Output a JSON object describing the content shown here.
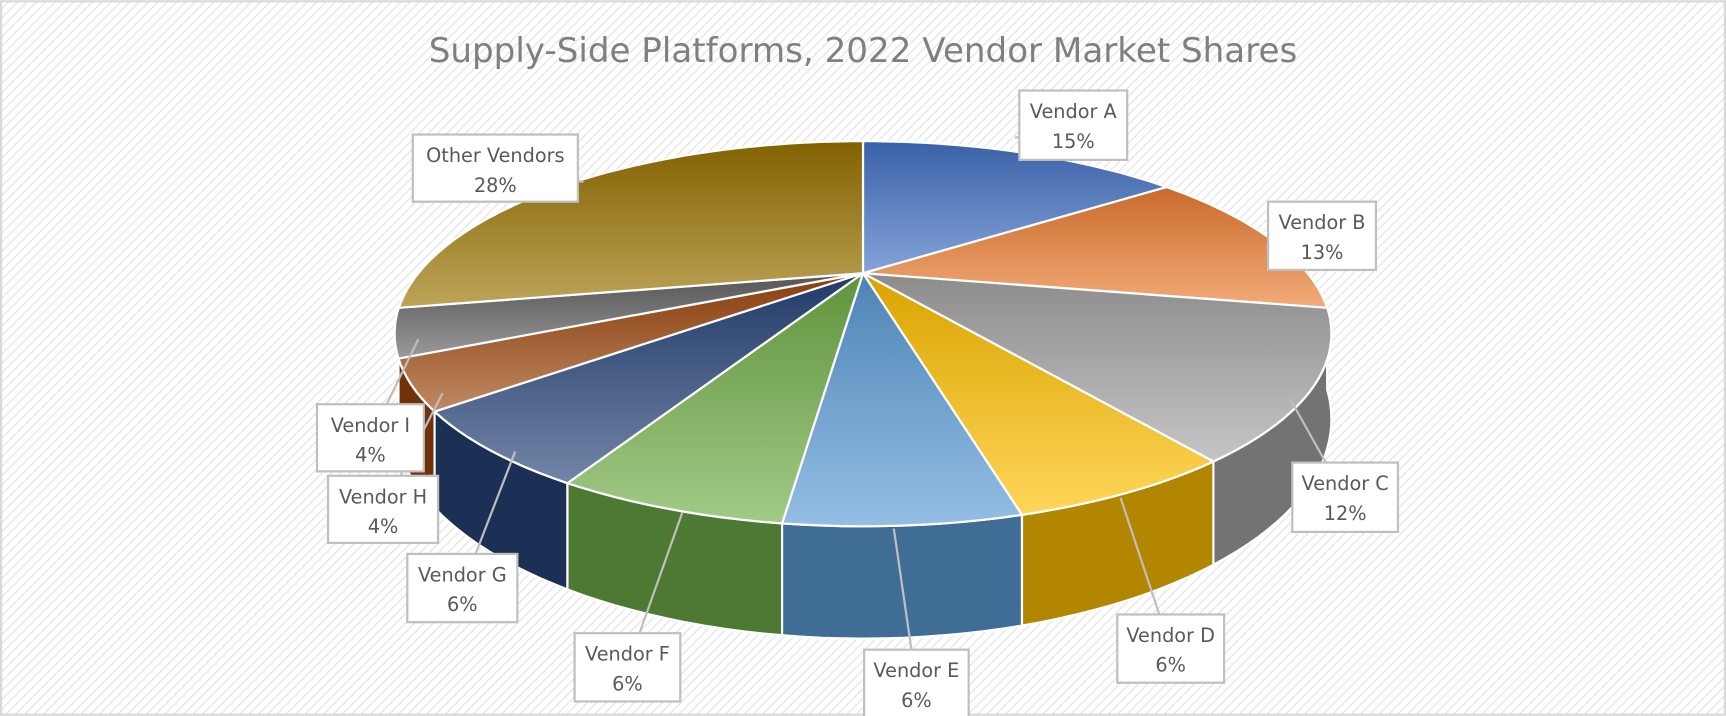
{
  "chart_data": {
    "type": "pie",
    "style": "3d-pie",
    "title": "Supply-Side Platforms, 2022 Vendor Market Shares",
    "legend": "none",
    "slices": [
      {
        "label": "Vendor A",
        "value": 15,
        "display": "15%",
        "color": "#4472C4"
      },
      {
        "label": "Vendor B",
        "value": 13,
        "display": "13%",
        "color": "#ED7D31"
      },
      {
        "label": "Vendor C",
        "value": 12,
        "display": "12%",
        "color": "#A5A5A5"
      },
      {
        "label": "Vendor D",
        "value": 6,
        "display": "6%",
        "color": "#FFC000"
      },
      {
        "label": "Vendor E",
        "value": 6,
        "display": "6%",
        "color": "#5B9BD5"
      },
      {
        "label": "Vendor F",
        "value": 6,
        "display": "6%",
        "color": "#70AD47"
      },
      {
        "label": "Vendor G",
        "value": 6,
        "display": "6%",
        "color": "#264478"
      },
      {
        "label": "Vendor H",
        "value": 4,
        "display": "4%",
        "color": "#9E480E"
      },
      {
        "label": "Vendor I",
        "value": 4,
        "display": "4%",
        "color": "#636363"
      },
      {
        "label": "Other Vendors",
        "value": 28,
        "display": "28%",
        "color": "#997300"
      }
    ]
  }
}
